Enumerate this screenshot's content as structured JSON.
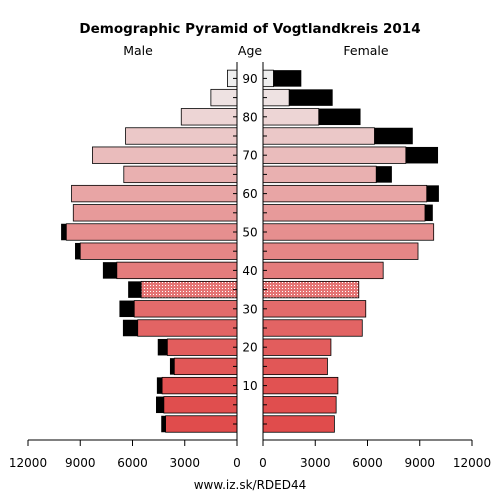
{
  "chart_data": {
    "type": "bar",
    "title": "Demographic Pyramid of Vogtlandkreis 2014",
    "left_label": "Male",
    "center_label": "Age",
    "right_label": "Female",
    "source": "www.iz.sk/RDED44",
    "xlim": [
      0,
      12000
    ],
    "x_ticks": [
      {
        "label": "12000"
      },
      {
        "label": "9000"
      },
      {
        "label": "6000"
      },
      {
        "label": "3000"
      },
      {
        "label": "0"
      },
      {
        "label": "0"
      },
      {
        "label": "3000"
      },
      {
        "label": "6000"
      },
      {
        "label": "9000"
      },
      {
        "label": "12000"
      }
    ],
    "age_ticks": [
      "10",
      "20",
      "30",
      "40",
      "50",
      "60",
      "70",
      "80",
      "90"
    ],
    "age_groups": [
      "0-4",
      "5-9",
      "10-14",
      "15-19",
      "20-24",
      "25-29",
      "30-34",
      "35-39",
      "40-44",
      "45-49",
      "50-54",
      "55-59",
      "60-64",
      "65-69",
      "70-74",
      "75-79",
      "80-84",
      "85-89",
      "90+"
    ],
    "series": [
      {
        "name": "Male",
        "values": [
          4100,
          4200,
          4300,
          3600,
          4000,
          5700,
          5900,
          5500,
          6900,
          9000,
          9800,
          9400,
          9500,
          6500,
          8300,
          6400,
          3200,
          1500,
          550
        ],
        "surplus": [
          250,
          450,
          300,
          250,
          550,
          850,
          850,
          750,
          800,
          300,
          300,
          0,
          0,
          0,
          0,
          0,
          0,
          0,
          0
        ]
      },
      {
        "name": "Female",
        "values": [
          4100,
          4200,
          4300,
          3700,
          3900,
          5700,
          5900,
          5500,
          6900,
          8900,
          9800,
          9300,
          9400,
          6500,
          8200,
          6400,
          3200,
          1500,
          600
        ],
        "surplus": [
          0,
          0,
          0,
          0,
          0,
          0,
          0,
          0,
          0,
          0,
          0,
          450,
          700,
          900,
          1850,
          2200,
          2400,
          2500,
          1600
        ]
      }
    ],
    "colors": {
      "surplus": "#000000",
      "youngest": "#e04c4c",
      "oldest": "#efefef",
      "hatched_age_group": "35-39",
      "hatch_dot": "#ffffff"
    }
  }
}
